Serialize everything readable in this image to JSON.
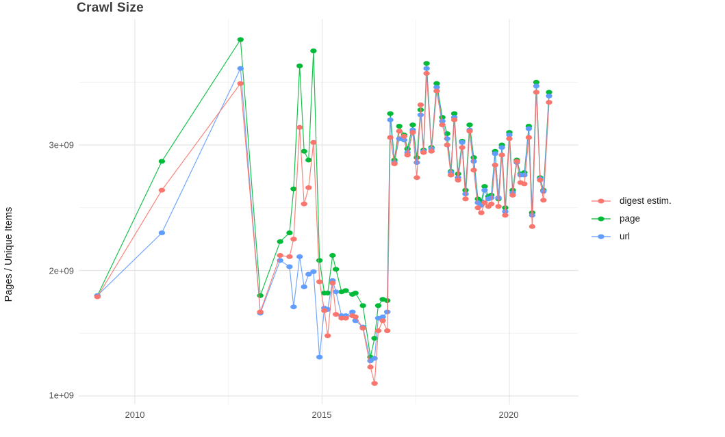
{
  "title": "Crawl Size",
  "y_axis": {
    "label": "Pages / Unique Items",
    "ticks": [
      "1e+09",
      "2e+09",
      "3e+09"
    ],
    "tick_values_billions": [
      1,
      2,
      3
    ],
    "minor_gridlines_billions": [
      1.5,
      2.5,
      3.5
    ]
  },
  "x_axis": {
    "ticks": [
      "2010",
      "2015",
      "2020"
    ],
    "tick_values": [
      2010,
      2015,
      2020
    ],
    "minor_gridlines": [
      2012.5,
      2017.5
    ]
  },
  "legend": {
    "position": "right",
    "items": [
      {
        "label": "digest estim.",
        "color": "#F8766D"
      },
      {
        "label": "page",
        "color": "#00BA38"
      },
      {
        "label": "url",
        "color": "#619CFF"
      }
    ]
  },
  "chart_data": {
    "type": "line",
    "title": "Crawl Size",
    "xlabel": "",
    "ylabel": "Pages / Unique Items",
    "values_unit": "billions of pages / unique items (1e9)",
    "xlim": [
      2008.5,
      2021.85
    ],
    "ylim_billions": [
      0.93,
      4.02
    ],
    "grid": "major and minor, light gray on white",
    "legend_position": "right",
    "marker": "filled ellipse on thin line",
    "x": [
      2009.0,
      2010.72,
      2012.82,
      2013.35,
      2013.88,
      2014.13,
      2014.24,
      2014.4,
      2014.52,
      2014.64,
      2014.77,
      2014.93,
      2015.06,
      2015.15,
      2015.28,
      2015.37,
      2015.52,
      2015.63,
      2015.81,
      2015.89,
      2016.09,
      2016.29,
      2016.4,
      2016.5,
      2016.62,
      2016.74,
      2016.82,
      2016.93,
      2017.06,
      2017.19,
      2017.28,
      2017.42,
      2017.53,
      2017.63,
      2017.71,
      2017.79,
      2017.92,
      2018.06,
      2018.21,
      2018.34,
      2018.44,
      2018.53,
      2018.63,
      2018.74,
      2018.83,
      2018.94,
      2019.05,
      2019.16,
      2019.25,
      2019.34,
      2019.44,
      2019.52,
      2019.62,
      2019.71,
      2019.8,
      2019.89,
      2020.0,
      2020.09,
      2020.2,
      2020.3,
      2020.4,
      2020.52,
      2020.61,
      2020.72,
      2020.82,
      2020.91,
      2021.06
    ],
    "series": [
      {
        "name": "digest estim.",
        "color": "#F8766D",
        "values": [
          1.79,
          2.64,
          3.49,
          1.67,
          2.12,
          2.11,
          2.25,
          3.14,
          2.53,
          2.66,
          3.02,
          1.91,
          1.68,
          1.48,
          1.9,
          1.65,
          1.62,
          1.62,
          1.64,
          1.63,
          1.54,
          1.23,
          1.1,
          1.52,
          1.6,
          1.52,
          3.06,
          2.85,
          3.11,
          3.07,
          2.92,
          3.1,
          2.74,
          3.32,
          2.94,
          3.57,
          2.95,
          3.43,
          3.16,
          3.0,
          2.76,
          3.2,
          2.72,
          2.98,
          2.57,
          3.11,
          2.8,
          2.5,
          2.46,
          2.54,
          2.51,
          2.53,
          2.84,
          2.51,
          2.92,
          2.44,
          3.05,
          2.6,
          2.87,
          2.7,
          2.69,
          3.06,
          2.35,
          3.42,
          2.72,
          2.56,
          3.34
        ]
      },
      {
        "name": "page",
        "color": "#00BA38",
        "values": [
          1.8,
          2.87,
          3.84,
          1.8,
          2.23,
          2.3,
          2.65,
          3.63,
          2.95,
          2.88,
          3.75,
          2.08,
          1.82,
          1.82,
          2.12,
          2.01,
          1.83,
          1.84,
          1.81,
          1.82,
          1.72,
          1.31,
          1.46,
          1.72,
          1.77,
          1.76,
          3.25,
          2.88,
          3.15,
          3.08,
          2.97,
          3.16,
          2.9,
          3.28,
          2.96,
          3.65,
          2.98,
          3.49,
          3.22,
          3.09,
          2.79,
          3.25,
          2.77,
          3.03,
          2.64,
          3.16,
          2.9,
          2.57,
          2.55,
          2.67,
          2.59,
          2.6,
          2.95,
          2.57,
          3.0,
          2.5,
          3.1,
          2.64,
          2.88,
          2.77,
          2.78,
          3.15,
          2.46,
          3.5,
          2.74,
          2.64,
          3.42
        ]
      },
      {
        "name": "url",
        "color": "#619CFF",
        "values": [
          1.8,
          2.3,
          3.61,
          1.66,
          2.08,
          2.03,
          1.71,
          2.11,
          1.87,
          1.97,
          1.99,
          1.31,
          1.7,
          1.69,
          1.92,
          1.83,
          1.64,
          1.64,
          1.67,
          1.6,
          1.55,
          1.28,
          1.3,
          1.62,
          1.63,
          1.67,
          3.2,
          2.86,
          3.05,
          3.04,
          2.94,
          3.12,
          2.86,
          3.24,
          2.95,
          3.61,
          2.97,
          3.46,
          3.19,
          3.05,
          2.78,
          3.22,
          2.74,
          3.02,
          2.61,
          3.12,
          2.87,
          2.54,
          2.52,
          2.64,
          2.57,
          2.58,
          2.93,
          2.58,
          2.98,
          2.47,
          3.08,
          2.62,
          2.86,
          2.76,
          2.76,
          3.13,
          2.44,
          3.47,
          2.73,
          2.63,
          3.39
        ]
      }
    ]
  }
}
